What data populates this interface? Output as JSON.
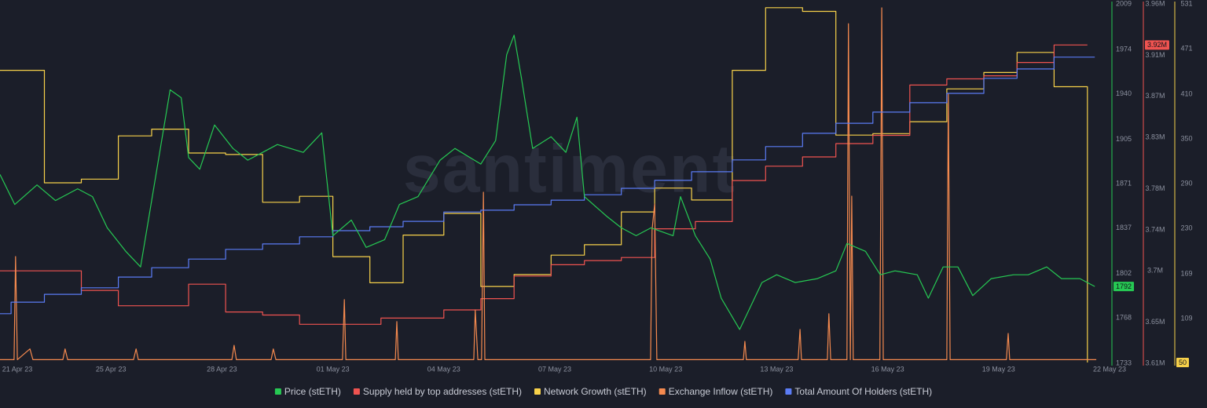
{
  "chart_data": {
    "type": "line",
    "watermark": "santiment",
    "xlim": [
      1,
      31
    ],
    "xticks": [
      {
        "value": 0,
        "label": "21 Apr 23"
      },
      {
        "value": 4,
        "label": "25 Apr 23"
      },
      {
        "value": 7,
        "label": "28 Apr 23"
      },
      {
        "value": 10,
        "label": "01 May 23"
      },
      {
        "value": 13,
        "label": "04 May 23"
      },
      {
        "value": 16,
        "label": "07 May 23"
      },
      {
        "value": 19,
        "label": "10 May 23"
      },
      {
        "value": 22,
        "label": "13 May 23"
      },
      {
        "value": 25,
        "label": "16 May 23"
      },
      {
        "value": 28,
        "label": "19 May 23"
      },
      {
        "value": 31,
        "label": "22 May 23"
      }
    ],
    "series": [
      {
        "name": "Price (stETH)",
        "color": "#26c953",
        "step": false,
        "ylim": [
          1733,
          2009
        ],
        "yticks": [
          1733,
          1768,
          1802,
          1837,
          1871,
          1905,
          1940,
          1974,
          2009
        ],
        "x": [
          1.0,
          1.4,
          2.0,
          2.5,
          3.1,
          3.5,
          3.9,
          4.4,
          4.8,
          5.1,
          5.6,
          5.9,
          6.1,
          6.4,
          6.8,
          7.3,
          7.7,
          8.1,
          8.5,
          9.2,
          9.7,
          10.0,
          10.5,
          10.9,
          11.4,
          11.8,
          12.3,
          12.9,
          13.3,
          14.0,
          14.4,
          14.7,
          14.9,
          15.1,
          15.4,
          15.9,
          16.3,
          16.6,
          16.8,
          17.4,
          17.8,
          18.2,
          18.6,
          19.2,
          19.4,
          19.8,
          20.2,
          20.5,
          21.0,
          21.3,
          21.6,
          22.0,
          22.5,
          23.1,
          23.6,
          23.9,
          24.4,
          24.8,
          25.2,
          25.8,
          26.1,
          26.5,
          26.9,
          27.3,
          27.8,
          28.4,
          28.8,
          29.3,
          29.7,
          30.2,
          30.6
        ],
        "values": [
          1878,
          1855,
          1870,
          1858,
          1867,
          1861,
          1837,
          1819,
          1807,
          1858,
          1943,
          1937,
          1891,
          1882,
          1916,
          1898,
          1889,
          1895,
          1901,
          1895,
          1910,
          1831,
          1843,
          1822,
          1828,
          1855,
          1861,
          1889,
          1898,
          1886,
          1904,
          1970,
          1985,
          1952,
          1898,
          1907,
          1895,
          1922,
          1861,
          1846,
          1837,
          1831,
          1837,
          1831,
          1861,
          1831,
          1813,
          1783,
          1759,
          1777,
          1795,
          1801,
          1795,
          1798,
          1804,
          1825,
          1819,
          1801,
          1804,
          1801,
          1783,
          1807,
          1807,
          1785,
          1798,
          1801,
          1801,
          1807,
          1798,
          1798,
          1792
        ]
      },
      {
        "name": "Supply held by top addresses (stETH)",
        "color": "#ef5350",
        "step": true,
        "ylim": [
          3610000,
          3960000
        ],
        "yticks": [
          {
            "value": 3610000,
            "label": "3.61M"
          },
          {
            "value": 3650000,
            "label": "3.65M"
          },
          {
            "value": 3700000,
            "label": "3.7M"
          },
          {
            "value": 3740000,
            "label": "3.74M"
          },
          {
            "value": 3780000,
            "label": "3.78M"
          },
          {
            "value": 3830000,
            "label": "3.83M"
          },
          {
            "value": 3870000,
            "label": "3.87M"
          },
          {
            "value": 3910000,
            "label": "3.91M"
          },
          {
            "value": 3960000,
            "label": "3.96M"
          }
        ],
        "x": [
          1.0,
          3.2,
          4.2,
          6.1,
          7.1,
          8.1,
          9.1,
          11.3,
          13.0,
          14.0,
          14.9,
          15.9,
          16.8,
          17.8,
          18.7,
          19.8,
          20.8,
          21.7,
          22.7,
          23.6,
          24.6,
          25.6,
          26.6,
          27.6,
          28.5,
          29.5,
          30.4
        ],
        "values": [
          3700000,
          3681000,
          3666000,
          3687000,
          3660000,
          3657000,
          3648000,
          3654000,
          3662000,
          3673000,
          3695000,
          3706000,
          3710000,
          3713000,
          3741000,
          3748000,
          3788000,
          3802000,
          3811000,
          3824000,
          3832000,
          3881000,
          3887000,
          3890000,
          3903000,
          3920000,
          3920000
        ],
        "value_labels": [
          null,
          null,
          null,
          null,
          null,
          null,
          null,
          null,
          null,
          null,
          null,
          null,
          null,
          null,
          null,
          null,
          null,
          null,
          null,
          null,
          null,
          null,
          null,
          null,
          null,
          null,
          "3.92M"
        ]
      },
      {
        "name": "Network Growth (stETH)",
        "color": "#f7d14a",
        "step": true,
        "ylim": [
          49,
          531
        ],
        "yticks": [
          109,
          169,
          230,
          290,
          350,
          410,
          471,
          531
        ],
        "x": [
          1.0,
          2.2,
          3.2,
          4.2,
          5.1,
          6.1,
          7.1,
          8.1,
          9.1,
          10.0,
          11.0,
          11.9,
          13.0,
          14.0,
          14.9,
          15.9,
          16.8,
          17.8,
          18.7,
          19.7,
          20.8,
          21.7,
          22.7,
          23.6,
          24.6,
          25.6,
          26.6,
          27.6,
          28.5,
          29.5,
          30.4
        ],
        "values": [
          442,
          291,
          296,
          354,
          363,
          331,
          329,
          265,
          273,
          192,
          157,
          221,
          250,
          152,
          168,
          194,
          208,
          252,
          284,
          268,
          442,
          526,
          521,
          355,
          357,
          373,
          417,
          439,
          466,
          420,
          50
        ]
      },
      {
        "name": "Exchange Inflow (stETH)",
        "color": "#f58a4f",
        "step": false,
        "ylim": [
          0,
          100
        ],
        "x": [
          1.0,
          1.38,
          1.42,
          1.47,
          1.81,
          1.89,
          2.7,
          2.76,
          2.83,
          4.61,
          4.68,
          4.74,
          7.27,
          7.33,
          7.39,
          8.33,
          8.39,
          8.46,
          10.26,
          10.31,
          10.35,
          11.69,
          11.73,
          11.77,
          13.81,
          13.85,
          13.92,
          14.02,
          14.07,
          14.11,
          18.59,
          18.63,
          18.7,
          18.76,
          21.1,
          21.14,
          21.18,
          22.58,
          22.63,
          22.67,
          23.37,
          23.41,
          23.46,
          23.9,
          23.94,
          23.99,
          24.03,
          24.07,
          24.79,
          24.84,
          24.88,
          26.6,
          26.64,
          26.69,
          28.21,
          28.26,
          28.3,
          30.64
        ],
        "values": [
          1,
          1,
          29.7,
          1,
          4,
          1,
          1,
          4,
          1,
          1,
          4,
          1,
          1,
          5,
          1,
          1,
          4,
          1,
          1,
          17.7,
          1,
          1,
          11.6,
          1,
          1,
          14.8,
          1,
          1,
          47.6,
          1,
          1,
          37.1,
          44.3,
          1,
          1,
          6.1,
          1,
          1,
          9.4,
          1,
          1,
          13.8,
          1,
          1,
          94.5,
          1,
          46.5,
          1,
          1,
          98.9,
          1,
          1,
          74.9,
          1,
          1,
          8.3,
          1,
          1
        ]
      },
      {
        "name": "Total Amount Of Holders (stETH)",
        "color": "#5b7cf5",
        "step": true,
        "ylim": [
          0,
          100
        ],
        "x": [
          1.0,
          1.3,
          2.2,
          3.2,
          4.2,
          5.1,
          6.1,
          7.1,
          8.1,
          9.1,
          10.0,
          11.0,
          11.9,
          13.0,
          14.0,
          14.9,
          15.9,
          16.8,
          17.8,
          18.7,
          19.7,
          20.8,
          21.7,
          22.7,
          23.6,
          24.6,
          25.6,
          26.6,
          27.6,
          28.5,
          29.5,
          30.6
        ],
        "values": [
          13.8,
          17.0,
          19.2,
          21.0,
          24.0,
          26.6,
          29.0,
          31.7,
          33.2,
          35.2,
          36.9,
          38.0,
          39.5,
          42.1,
          42.6,
          44.1,
          45.4,
          46.9,
          48.7,
          50.9,
          53.3,
          56.6,
          60.3,
          64.0,
          66.8,
          69.9,
          72.5,
          75.1,
          79.3,
          81.9,
          85.2,
          85.2
        ]
      }
    ]
  }
}
